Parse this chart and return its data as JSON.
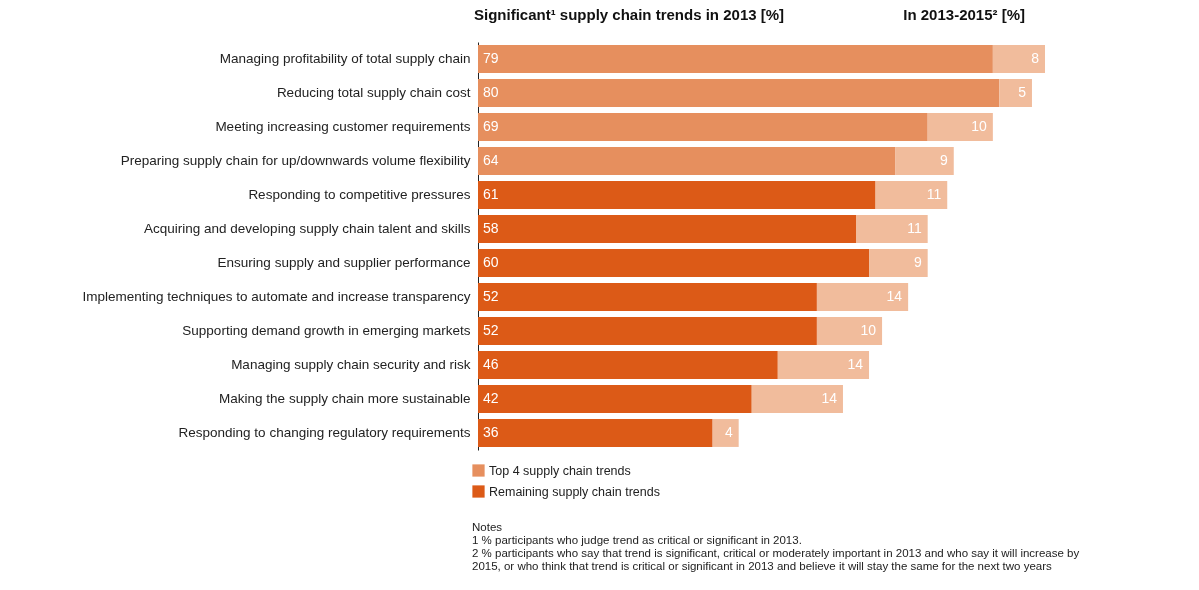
{
  "chart_data": {
    "type": "bar",
    "orientation": "horizontal",
    "stacked": true,
    "data_labels": true,
    "legend": "bottom left",
    "title": "Significant¹ supply chain trends in 2013 [%]",
    "categories": [
      "Managing profitability of total supply chain",
      "Reducing total supply chain cost",
      "Meeting increasing customer requirements",
      "Preparing supply chain for up/downwards volume flexibility",
      "Responding to competitive pressures",
      "Acquiring and developing supply chain talent and skills",
      "Ensuring supply and supplier performance",
      "Implementing techniques to automate and increase transparency",
      "Supporting demand growth in emerging markets",
      "Managing supply chain security and risk",
      "Making the supply chain more sustainable",
      "Responding to changing regulatory requirements"
    ],
    "series": [
      {
        "name": "Top 4 supply chain trends",
        "color": "#e68f5e",
        "values": [
          79,
          80,
          69,
          64,
          null,
          null,
          null,
          null,
          null,
          null,
          null,
          null
        ]
      },
      {
        "name": "Remaining supply chain trends",
        "color": "#dc5a17",
        "values": [
          null,
          null,
          null,
          null,
          61,
          58,
          60,
          52,
          52,
          46,
          42,
          36
        ]
      },
      {
        "color": "#f1bc9c",
        "values": [
          8,
          5,
          10,
          9,
          11,
          11,
          9,
          14,
          10,
          14,
          14,
          4
        ]
      }
    ],
    "annotations": [
      "In 2013-2015² [%]",
      "Notes",
      "1  % participants who judge trend as critical or significant in 2013.",
      "2  % participants who say that trend is significant, critical or moderately important in 2013 and who say it will increase by 2015, or who think that trend is critical or significant in 2013 and believe it will stay the same for the next two years"
    ]
  }
}
